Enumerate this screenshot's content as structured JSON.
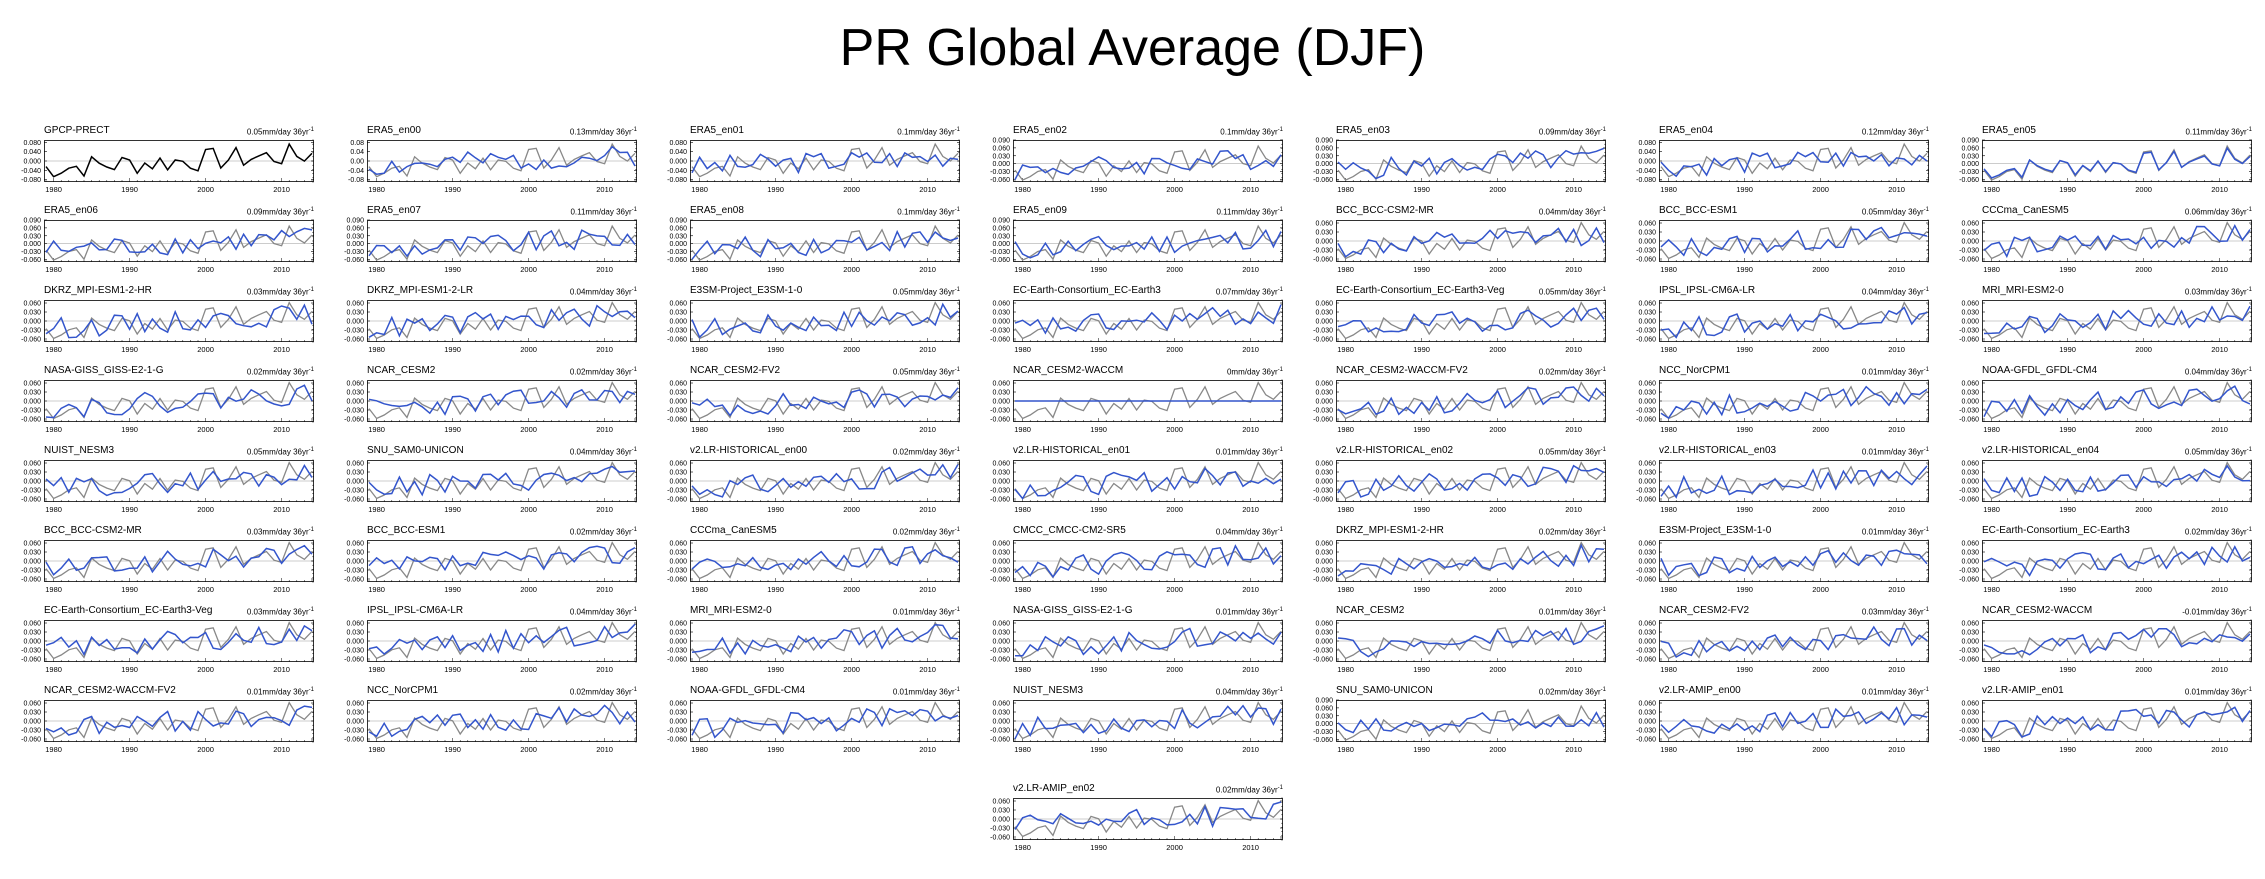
{
  "title": "PR Global Average (DJF)",
  "colors": {
    "model": "#3355cc",
    "observation": "#888888",
    "reference_line": "#000000",
    "zero_line": "#999999"
  },
  "chart_data": {
    "type": "line",
    "x_start": 1979,
    "x_end": 2014,
    "xticks": [
      1980,
      1990,
      2000,
      2010
    ],
    "grid": false,
    "panels": [
      {
        "name": "GPCP-PRECT",
        "trend": "0.05mm/day 36yr",
        "yticks": [
          "0.080",
          "0.040",
          "0.000",
          "-0.040",
          "-0.080"
        ],
        "ylim": [
          -0.09,
          0.09
        ],
        "reference": true,
        "seed": 1
      },
      {
        "name": "ERA5_en00",
        "trend": "0.13mm/day 36yr",
        "yticks": [
          "0.08",
          "0.04",
          "0.00",
          "-0.04",
          "-0.08"
        ],
        "ylim": [
          -0.09,
          0.09
        ],
        "seed": 2
      },
      {
        "name": "ERA5_en01",
        "trend": "0.1mm/day 36yr",
        "yticks": [
          "0.080",
          "0.040",
          "0.000",
          "-0.040",
          "-0.080"
        ],
        "ylim": [
          -0.09,
          0.09
        ],
        "seed": 3
      },
      {
        "name": "ERA5_en02",
        "trend": "0.1mm/day 36yr",
        "yticks": [
          "0.090",
          "0.060",
          "0.030",
          "0.000",
          "-0.030",
          "-0.060"
        ],
        "ylim": [
          -0.07,
          0.09
        ],
        "seed": 4
      },
      {
        "name": "ERA5_en03",
        "trend": "0.09mm/day 36yr",
        "yticks": [
          "0.090",
          "0.060",
          "0.030",
          "0.000",
          "-0.030",
          "-0.060"
        ],
        "ylim": [
          -0.07,
          0.09
        ],
        "seed": 5
      },
      {
        "name": "ERA5_en04",
        "trend": "0.12mm/day 36yr",
        "yticks": [
          "0.080",
          "0.040",
          "0.000",
          "-0.040",
          "-0.080"
        ],
        "ylim": [
          -0.09,
          0.09
        ],
        "seed": 6
      },
      {
        "name": "ERA5_en05",
        "trend": "0.11mm/day 36yr",
        "yticks": [
          "0.090",
          "0.060",
          "0.030",
          "0.000",
          "-0.030",
          "-0.060"
        ],
        "ylim": [
          -0.07,
          0.09
        ],
        "seed": 7
      },
      {
        "name": "ERA5_en06",
        "trend": "0.09mm/day 36yr",
        "yticks": [
          "0.090",
          "0.060",
          "0.030",
          "0.000",
          "-0.030",
          "-0.060"
        ],
        "ylim": [
          -0.07,
          0.09
        ],
        "seed": 8
      },
      {
        "name": "ERA5_en07",
        "trend": "0.11mm/day 36yr",
        "yticks": [
          "0.090",
          "0.060",
          "0.030",
          "0.000",
          "-0.030",
          "-0.060"
        ],
        "ylim": [
          -0.07,
          0.09
        ],
        "seed": 9
      },
      {
        "name": "ERA5_en08",
        "trend": "0.1mm/day 36yr",
        "yticks": [
          "0.090",
          "0.060",
          "0.030",
          "0.000",
          "-0.030",
          "-0.060"
        ],
        "ylim": [
          -0.07,
          0.09
        ],
        "seed": 10
      },
      {
        "name": "ERA5_en09",
        "trend": "0.11mm/day 36yr",
        "yticks": [
          "0.090",
          "0.060",
          "0.030",
          "0.000",
          "-0.030",
          "-0.060"
        ],
        "ylim": [
          -0.07,
          0.09
        ],
        "seed": 11
      },
      {
        "name": "BCC_BCC-CSM2-MR",
        "trend": "0.04mm/day 36yr",
        "yticks": [
          "0.060",
          "0.030",
          "0.000",
          "-0.030",
          "-0.060"
        ],
        "ylim": [
          -0.07,
          0.07
        ],
        "seed": 12
      },
      {
        "name": "BCC_BCC-ESM1",
        "trend": "0.05mm/day 36yr",
        "yticks": [
          "0.060",
          "0.030",
          "0.000",
          "-0.030",
          "-0.060"
        ],
        "ylim": [
          -0.07,
          0.07
        ],
        "seed": 13
      },
      {
        "name": "CCCma_CanESM5",
        "trend": "0.06mm/day 36yr",
        "yticks": [
          "0.060",
          "0.030",
          "0.000",
          "-0.030",
          "-0.060"
        ],
        "ylim": [
          -0.07,
          0.07
        ],
        "seed": 14
      },
      {
        "name": "DKRZ_MPI-ESM1-2-HR",
        "trend": "0.03mm/day 36yr",
        "yticks": [
          "0.060",
          "0.030",
          "0.000",
          "-0.030",
          "-0.060"
        ],
        "ylim": [
          -0.07,
          0.07
        ],
        "seed": 15
      },
      {
        "name": "DKRZ_MPI-ESM1-2-LR",
        "trend": "0.04mm/day 36yr",
        "yticks": [
          "0.060",
          "0.030",
          "0.000",
          "-0.030",
          "-0.060"
        ],
        "ylim": [
          -0.07,
          0.07
        ],
        "seed": 16
      },
      {
        "name": "E3SM-Project_E3SM-1-0",
        "trend": "0.05mm/day 36yr",
        "yticks": [
          "0.060",
          "0.030",
          "0.000",
          "-0.030",
          "-0.060"
        ],
        "ylim": [
          -0.07,
          0.07
        ],
        "seed": 17
      },
      {
        "name": "EC-Earth-Consortium_EC-Earth3",
        "trend": "0.07mm/day 36yr",
        "yticks": [
          "0.060",
          "0.030",
          "0.000",
          "-0.030",
          "-0.060"
        ],
        "ylim": [
          -0.07,
          0.07
        ],
        "seed": 18
      },
      {
        "name": "EC-Earth-Consortium_EC-Earth3-Veg",
        "trend": "0.05mm/day 36yr",
        "yticks": [
          "0.060",
          "0.030",
          "0.000",
          "-0.030",
          "-0.060"
        ],
        "ylim": [
          -0.07,
          0.07
        ],
        "seed": 19
      },
      {
        "name": "IPSL_IPSL-CM6A-LR",
        "trend": "0.04mm/day 36yr",
        "yticks": [
          "0.060",
          "0.030",
          "0.000",
          "-0.030",
          "-0.060"
        ],
        "ylim": [
          -0.07,
          0.07
        ],
        "seed": 20
      },
      {
        "name": "MRI_MRI-ESM2-0",
        "trend": "0.03mm/day 36yr",
        "yticks": [
          "0.060",
          "0.030",
          "0.000",
          "-0.030",
          "-0.060"
        ],
        "ylim": [
          -0.07,
          0.07
        ],
        "seed": 21
      },
      {
        "name": "NASA-GISS_GISS-E2-1-G",
        "trend": "0.02mm/day 36yr",
        "yticks": [
          "0.060",
          "0.030",
          "0.000",
          "-0.030",
          "-0.060"
        ],
        "ylim": [
          -0.07,
          0.07
        ],
        "seed": 22
      },
      {
        "name": "NCAR_CESM2",
        "trend": "0.02mm/day 36yr",
        "yticks": [
          "0.060",
          "0.030",
          "0.000",
          "-0.030",
          "-0.060"
        ],
        "ylim": [
          -0.07,
          0.07
        ],
        "seed": 23
      },
      {
        "name": "NCAR_CESM2-FV2",
        "trend": "0.05mm/day 36yr",
        "yticks": [
          "0.060",
          "0.030",
          "0.000",
          "-0.030",
          "-0.060"
        ],
        "ylim": [
          -0.07,
          0.07
        ],
        "seed": 24
      },
      {
        "name": "NCAR_CESM2-WACCM",
        "trend": "0mm/day 36yr",
        "yticks": [
          "0.060",
          "0.030",
          "0.000",
          "-0.030",
          "-0.060"
        ],
        "ylim": [
          -0.07,
          0.07
        ],
        "flat": true,
        "seed": 25
      },
      {
        "name": "NCAR_CESM2-WACCM-FV2",
        "trend": "0.02mm/day 36yr",
        "yticks": [
          "0.060",
          "0.030",
          "0.000",
          "-0.030",
          "-0.060"
        ],
        "ylim": [
          -0.07,
          0.07
        ],
        "seed": 26
      },
      {
        "name": "NCC_NorCPM1",
        "trend": "0.01mm/day 36yr",
        "yticks": [
          "0.060",
          "0.030",
          "0.000",
          "-0.030",
          "-0.060"
        ],
        "ylim": [
          -0.07,
          0.07
        ],
        "seed": 27
      },
      {
        "name": "NOAA-GFDL_GFDL-CM4",
        "trend": "0.04mm/day 36yr",
        "yticks": [
          "0.060",
          "0.030",
          "0.000",
          "-0.030",
          "-0.060"
        ],
        "ylim": [
          -0.07,
          0.07
        ],
        "seed": 28
      },
      {
        "name": "NUIST_NESM3",
        "trend": "0.05mm/day 36yr",
        "yticks": [
          "0.060",
          "0.030",
          "0.000",
          "-0.030",
          "-0.060"
        ],
        "ylim": [
          -0.07,
          0.07
        ],
        "seed": 29
      },
      {
        "name": "SNU_SAM0-UNICON",
        "trend": "0.04mm/day 36yr",
        "yticks": [
          "0.060",
          "0.030",
          "0.000",
          "-0.030",
          "-0.060"
        ],
        "ylim": [
          -0.07,
          0.07
        ],
        "seed": 30
      },
      {
        "name": "v2.LR-HISTORICAL_en00",
        "trend": "0.02mm/day 36yr",
        "yticks": [
          "0.060",
          "0.030",
          "0.000",
          "-0.030",
          "-0.060"
        ],
        "ylim": [
          -0.07,
          0.07
        ],
        "seed": 31
      },
      {
        "name": "v2.LR-HISTORICAL_en01",
        "trend": "0.01mm/day 36yr",
        "yticks": [
          "0.060",
          "0.030",
          "0.000",
          "-0.030",
          "-0.060"
        ],
        "ylim": [
          -0.07,
          0.07
        ],
        "seed": 32
      },
      {
        "name": "v2.LR-HISTORICAL_en02",
        "trend": "0.05mm/day 36yr",
        "yticks": [
          "0.060",
          "0.030",
          "0.000",
          "-0.030",
          "-0.060"
        ],
        "ylim": [
          -0.07,
          0.07
        ],
        "seed": 33
      },
      {
        "name": "v2.LR-HISTORICAL_en03",
        "trend": "0.01mm/day 36yr",
        "yticks": [
          "0.060",
          "0.030",
          "0.000",
          "-0.030",
          "-0.060"
        ],
        "ylim": [
          -0.07,
          0.07
        ],
        "seed": 34
      },
      {
        "name": "v2.LR-HISTORICAL_en04",
        "trend": "0.05mm/day 36yr",
        "yticks": [
          "0.060",
          "0.030",
          "0.000",
          "-0.030",
          "-0.060"
        ],
        "ylim": [
          -0.07,
          0.07
        ],
        "seed": 35
      },
      {
        "name": "BCC_BCC-CSM2-MR",
        "trend": "0.03mm/day 36yr",
        "yticks": [
          "0.060",
          "0.030",
          "0.000",
          "-0.030",
          "-0.060"
        ],
        "ylim": [
          -0.07,
          0.07
        ],
        "seed": 36
      },
      {
        "name": "BCC_BCC-ESM1",
        "trend": "0.02mm/day 36yr",
        "yticks": [
          "0.060",
          "0.030",
          "0.000",
          "-0.030",
          "-0.060"
        ],
        "ylim": [
          -0.07,
          0.07
        ],
        "seed": 37
      },
      {
        "name": "CCCma_CanESM5",
        "trend": "0.02mm/day 36yr",
        "yticks": [
          "0.060",
          "0.030",
          "0.000",
          "-0.030",
          "-0.060"
        ],
        "ylim": [
          -0.07,
          0.07
        ],
        "seed": 38
      },
      {
        "name": "CMCC_CMCC-CM2-SR5",
        "trend": "0.04mm/day 36yr",
        "yticks": [
          "0.060",
          "0.030",
          "0.000",
          "-0.030",
          "-0.060"
        ],
        "ylim": [
          -0.07,
          0.07
        ],
        "seed": 39
      },
      {
        "name": "DKRZ_MPI-ESM1-2-HR",
        "trend": "0.02mm/day 36yr",
        "yticks": [
          "0.060",
          "0.030",
          "0.000",
          "-0.030",
          "-0.060"
        ],
        "ylim": [
          -0.07,
          0.07
        ],
        "seed": 40
      },
      {
        "name": "E3SM-Project_E3SM-1-0",
        "trend": "0.01mm/day 36yr",
        "yticks": [
          "0.060",
          "0.030",
          "0.000",
          "-0.030",
          "-0.060"
        ],
        "ylim": [
          -0.07,
          0.07
        ],
        "seed": 41
      },
      {
        "name": "EC-Earth-Consortium_EC-Earth3",
        "trend": "0.02mm/day 36yr",
        "yticks": [
          "0.060",
          "0.030",
          "0.000",
          "-0.030",
          "-0.060"
        ],
        "ylim": [
          -0.07,
          0.07
        ],
        "seed": 42
      },
      {
        "name": "EC-Earth-Consortium_EC-Earth3-Veg",
        "trend": "0.03mm/day 36yr",
        "yticks": [
          "0.060",
          "0.030",
          "0.000",
          "-0.030",
          "-0.060"
        ],
        "ylim": [
          -0.07,
          0.07
        ],
        "seed": 43
      },
      {
        "name": "IPSL_IPSL-CM6A-LR",
        "trend": "0.04mm/day 36yr",
        "yticks": [
          "0.060",
          "0.030",
          "0.000",
          "-0.030",
          "-0.060"
        ],
        "ylim": [
          -0.07,
          0.07
        ],
        "seed": 44
      },
      {
        "name": "MRI_MRI-ESM2-0",
        "trend": "0.01mm/day 36yr",
        "yticks": [
          "0.060",
          "0.030",
          "0.000",
          "-0.030",
          "-0.060"
        ],
        "ylim": [
          -0.07,
          0.07
        ],
        "seed": 45
      },
      {
        "name": "NASA-GISS_GISS-E2-1-G",
        "trend": "0.01mm/day 36yr",
        "yticks": [
          "0.060",
          "0.030",
          "0.000",
          "-0.030",
          "-0.060"
        ],
        "ylim": [
          -0.07,
          0.07
        ],
        "seed": 46
      },
      {
        "name": "NCAR_CESM2",
        "trend": "0.01mm/day 36yr",
        "yticks": [
          "0.060",
          "0.030",
          "0.000",
          "-0.030",
          "-0.060"
        ],
        "ylim": [
          -0.07,
          0.07
        ],
        "seed": 47
      },
      {
        "name": "NCAR_CESM2-FV2",
        "trend": "0.03mm/day 36yr",
        "yticks": [
          "0.060",
          "0.030",
          "0.000",
          "-0.030",
          "-0.060"
        ],
        "ylim": [
          -0.07,
          0.07
        ],
        "seed": 48
      },
      {
        "name": "NCAR_CESM2-WACCM",
        "trend": "-0.01mm/day 36yr",
        "yticks": [
          "0.060",
          "0.030",
          "0.000",
          "-0.030",
          "-0.060"
        ],
        "ylim": [
          -0.07,
          0.07
        ],
        "seed": 49
      },
      {
        "name": "NCAR_CESM2-WACCM-FV2",
        "trend": "0.01mm/day 36yr",
        "yticks": [
          "0.060",
          "0.030",
          "0.000",
          "-0.030",
          "-0.060"
        ],
        "ylim": [
          -0.07,
          0.07
        ],
        "seed": 50
      },
      {
        "name": "NCC_NorCPM1",
        "trend": "0.02mm/day 36yr",
        "yticks": [
          "0.060",
          "0.030",
          "0.000",
          "-0.030",
          "-0.060"
        ],
        "ylim": [
          -0.07,
          0.07
        ],
        "seed": 51
      },
      {
        "name": "NOAA-GFDL_GFDL-CM4",
        "trend": "0.01mm/day 36yr",
        "yticks": [
          "0.060",
          "0.030",
          "0.000",
          "-0.030",
          "-0.060"
        ],
        "ylim": [
          -0.07,
          0.07
        ],
        "seed": 52
      },
      {
        "name": "NUIST_NESM3",
        "trend": "0.04mm/day 36yr",
        "yticks": [
          "0.060",
          "0.030",
          "0.000",
          "-0.030",
          "-0.060"
        ],
        "ylim": [
          -0.07,
          0.07
        ],
        "seed": 53
      },
      {
        "name": "SNU_SAM0-UNICON",
        "trend": "0.02mm/day 36yr",
        "yticks": [
          "0.090",
          "0.060",
          "0.030",
          "0.000",
          "-0.030",
          "-0.060"
        ],
        "ylim": [
          -0.07,
          0.09
        ],
        "seed": 54
      },
      {
        "name": "v2.LR-AMIP_en00",
        "trend": "0.01mm/day 36yr",
        "yticks": [
          "0.060",
          "0.030",
          "0.000",
          "-0.030",
          "-0.060"
        ],
        "ylim": [
          -0.07,
          0.07
        ],
        "seed": 55
      },
      {
        "name": "v2.LR-AMIP_en01",
        "trend": "0.01mm/day 36yr",
        "yticks": [
          "0.060",
          "0.030",
          "0.000",
          "-0.030",
          "-0.060"
        ],
        "ylim": [
          -0.07,
          0.07
        ],
        "seed": 56
      },
      {
        "name": "v2.LR-AMIP_en02",
        "trend": "0.02mm/day 36yr",
        "yticks": [
          "0.060",
          "0.030",
          "0.000",
          "-0.030",
          "-0.060"
        ],
        "ylim": [
          -0.07,
          0.07
        ],
        "seed": 57
      }
    ]
  }
}
